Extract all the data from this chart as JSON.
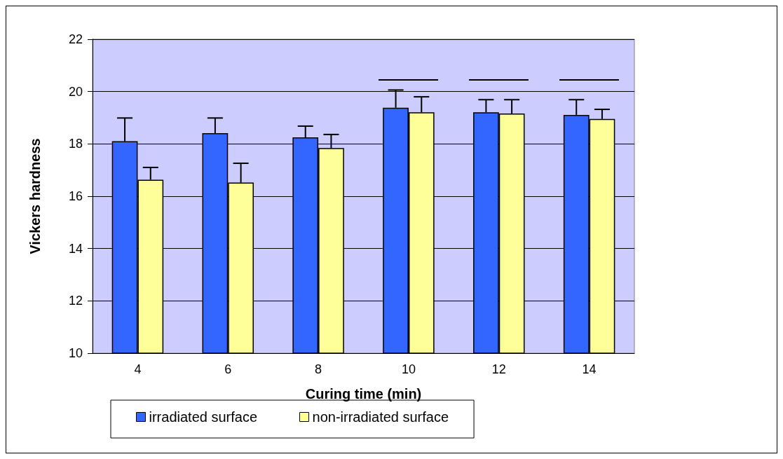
{
  "chart_data": {
    "type": "bar",
    "xlabel": "Curing time (min)",
    "ylabel": "Vickers hardness",
    "categories": [
      "4",
      "6",
      "8",
      "10",
      "12",
      "14"
    ],
    "series": [
      {
        "name": "irradiated surface",
        "color": "#3366ff",
        "values": [
          18.1,
          18.41,
          18.25,
          19.38,
          19.21,
          19.11
        ],
        "errors": [
          [
            18.1,
            18.99
          ],
          [
            18.41,
            18.99
          ],
          [
            18.25,
            18.68
          ],
          [
            19.38,
            20.06
          ],
          [
            19.21,
            19.69
          ],
          [
            19.11,
            19.69
          ]
        ]
      },
      {
        "name": "non-irradiated surface",
        "color": "#ffff99",
        "values": [
          16.63,
          16.52,
          17.84,
          19.21,
          19.16,
          18.95
        ],
        "errors": [
          [
            16.63,
            17.1
          ],
          [
            16.52,
            17.26
          ],
          [
            17.84,
            18.36
          ],
          [
            19.21,
            19.8
          ],
          [
            19.16,
            19.69
          ],
          [
            18.95,
            19.32
          ]
        ]
      }
    ],
    "ylim": [
      10,
      22
    ],
    "yticks": [
      10,
      12,
      14,
      16,
      18,
      20,
      22
    ],
    "grid": "y",
    "legend": "bottom"
  }
}
